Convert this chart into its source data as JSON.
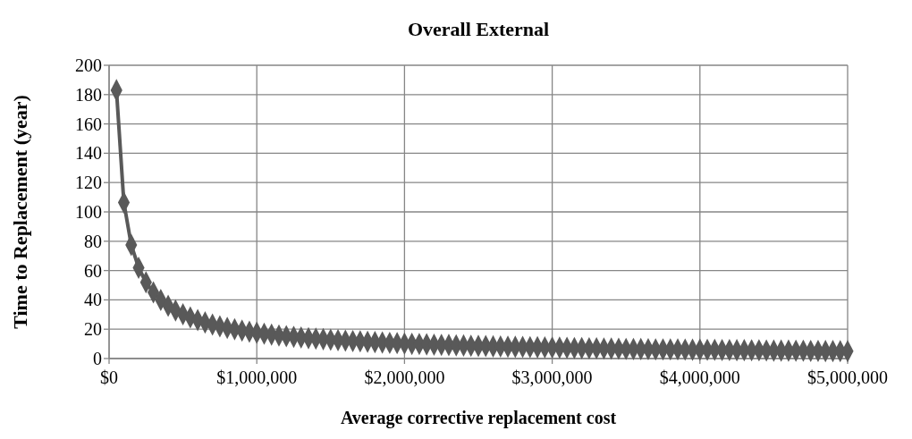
{
  "chart_data": {
    "type": "line",
    "title": "Overall External",
    "xlabel": "Average corrective replacement cost",
    "ylabel": "Time to Replacement (year)",
    "x": [
      50000,
      100000,
      150000,
      200000,
      250000,
      300000,
      350000,
      400000,
      450000,
      500000,
      550000,
      600000,
      650000,
      700000,
      750000,
      800000,
      850000,
      900000,
      950000,
      1000000,
      1050000,
      1100000,
      1150000,
      1200000,
      1250000,
      1300000,
      1350000,
      1400000,
      1450000,
      1500000,
      1550000,
      1600000,
      1650000,
      1700000,
      1750000,
      1800000,
      1850000,
      1900000,
      1950000,
      2000000,
      2050000,
      2100000,
      2150000,
      2200000,
      2250000,
      2300000,
      2350000,
      2400000,
      2450000,
      2500000,
      2550000,
      2600000,
      2650000,
      2700000,
      2750000,
      2800000,
      2850000,
      2900000,
      2950000,
      3000000,
      3050000,
      3100000,
      3150000,
      3200000,
      3250000,
      3300000,
      3350000,
      3400000,
      3450000,
      3500000,
      3550000,
      3600000,
      3650000,
      3700000,
      3750000,
      3800000,
      3850000,
      3900000,
      3950000,
      4000000,
      4050000,
      4100000,
      4150000,
      4200000,
      4250000,
      4300000,
      4350000,
      4400000,
      4450000,
      4500000,
      4550000,
      4600000,
      4650000,
      4700000,
      4750000,
      4800000,
      4850000,
      4900000,
      4950000,
      5000000
    ],
    "series": [
      {
        "color": "#595959",
        "values": [
          183,
          106.4,
          77.5,
          61.9,
          52.0,
          45.1,
          39.9,
          36.0,
          32.8,
          30.2,
          28.1,
          26.2,
          24.6,
          23.2,
          22.0,
          20.9,
          20.0,
          19.1,
          18.3,
          17.6,
          16.9,
          16.3,
          15.7,
          15.2,
          14.8,
          14.3,
          13.9,
          13.6,
          13.2,
          12.8,
          12.5,
          12.2,
          11.9,
          11.7,
          11.4,
          11.2,
          10.9,
          10.7,
          10.5,
          10.2,
          10.0,
          9.9,
          9.7,
          9.5,
          9.3,
          9.2,
          9.0,
          8.9,
          8.7,
          8.6,
          8.5,
          8.3,
          8.2,
          8.1,
          8.0,
          7.9,
          7.8,
          7.7,
          7.6,
          7.5,
          7.4,
          7.3,
          7.2,
          7.1,
          7.0,
          7.0,
          6.9,
          6.8,
          6.7,
          6.6,
          6.5,
          6.5,
          6.4,
          6.3,
          6.3,
          6.2,
          6.2,
          6.1,
          6.0,
          6.0,
          5.9,
          5.9,
          5.8,
          5.8,
          5.7,
          5.7,
          5.6,
          5.6,
          5.5,
          5.4,
          5.4,
          5.4,
          5.3,
          5.3,
          5.2,
          5.2,
          5.1,
          5.1,
          5.0,
          5.0
        ]
      }
    ],
    "xlim": [
      0,
      5000000
    ],
    "xticks": [
      {
        "value": 0,
        "label": "$0"
      },
      {
        "value": 1000000,
        "label": "$1,000,000"
      },
      {
        "value": 2000000,
        "label": "$2,000,000"
      },
      {
        "value": 3000000,
        "label": "$3,000,000"
      },
      {
        "value": 4000000,
        "label": "$4,000,000"
      },
      {
        "value": 5000000,
        "label": "$5,000,000"
      }
    ],
    "ylim": [
      0,
      200
    ],
    "yticks": [
      0,
      20,
      40,
      60,
      80,
      100,
      120,
      140,
      160,
      180,
      200
    ],
    "grid": true,
    "marker": "diamond",
    "line_style": "solid"
  }
}
